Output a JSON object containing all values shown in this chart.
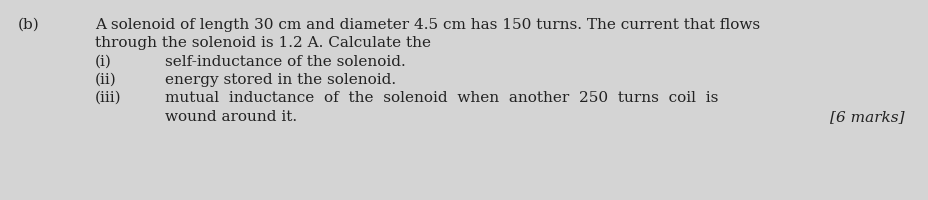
{
  "background_color": "#d4d4d4",
  "label_b": "(b)",
  "line1": "A solenoid of length 30 cm and diameter 4.5 cm has 150 turns. The current that flows",
  "line2": "through the solenoid is 1.2 A. Calculate the",
  "label_i": "(i)",
  "text_i": "self-inductance of the solenoid.",
  "label_ii": "(ii)",
  "text_ii": "energy stored in the solenoid.",
  "label_iii": "(iii)",
  "text_iii_part1": "mutual  inductance  of  the  solenoid  when  another  250  turns  coil  is",
  "text_iii_part2": "wound around it.",
  "marks": "[6 marks]",
  "font_size": 11.0,
  "text_color": "#222222",
  "fig_width": 9.29,
  "fig_height": 2.0,
  "dpi": 100
}
